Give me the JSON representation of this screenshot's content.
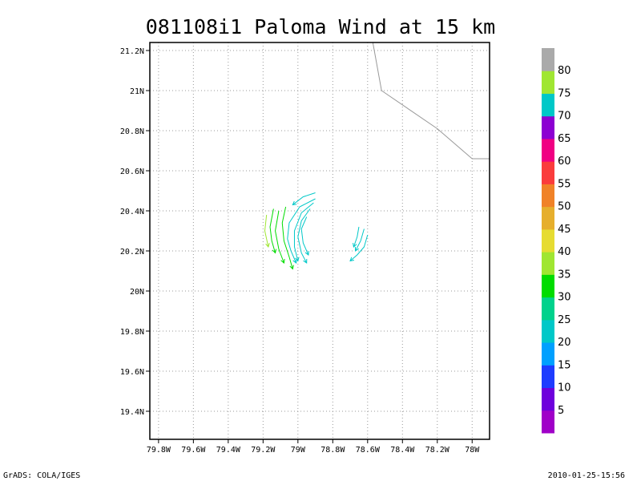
{
  "chart_data": {
    "type": "vector",
    "title": "081108i1 Paloma Wind at 15 km",
    "xlabel": "",
    "ylabel": "",
    "xlim": [
      -79.85,
      -77.9
    ],
    "ylim": [
      19.26,
      21.24
    ],
    "grid": true,
    "x_ticks": [
      {
        "value": -79.8,
        "label": "79.8W"
      },
      {
        "value": -79.6,
        "label": "79.6W"
      },
      {
        "value": -79.4,
        "label": "79.4W"
      },
      {
        "value": -79.2,
        "label": "79.2W"
      },
      {
        "value": -79.0,
        "label": "79W"
      },
      {
        "value": -78.8,
        "label": "78.8W"
      },
      {
        "value": -78.6,
        "label": "78.6W"
      },
      {
        "value": -78.4,
        "label": "78.4W"
      },
      {
        "value": -78.2,
        "label": "78.2W"
      },
      {
        "value": -78.0,
        "label": "78W"
      }
    ],
    "y_ticks": [
      {
        "value": 19.4,
        "label": "19.4N"
      },
      {
        "value": 19.6,
        "label": "19.6N"
      },
      {
        "value": 19.8,
        "label": "19.8N"
      },
      {
        "value": 20.0,
        "label": "20N"
      },
      {
        "value": 20.2,
        "label": "20.2N"
      },
      {
        "value": 20.4,
        "label": "20.4N"
      },
      {
        "value": 20.6,
        "label": "20.6N"
      },
      {
        "value": 20.8,
        "label": "20.8N"
      },
      {
        "value": 21.0,
        "label": "21N"
      },
      {
        "value": 21.2,
        "label": "21.2N"
      }
    ],
    "coastline": [
      [
        -78.57,
        21.24
      ],
      [
        -78.52,
        21.0
      ],
      [
        -78.2,
        20.81
      ],
      [
        -78.0,
        20.66
      ],
      [
        -77.9,
        20.66
      ]
    ],
    "colorbar": {
      "labels": [
        "5",
        "10",
        "15",
        "20",
        "25",
        "30",
        "35",
        "40",
        "45",
        "50",
        "55",
        "60",
        "65",
        "70",
        "75",
        "80"
      ],
      "colors": [
        "#a000c8",
        "#6e00dc",
        "#1e3cff",
        "#00a0ff",
        "#00c8c8",
        "#00d28c",
        "#00dc00",
        "#a0e632",
        "#e6dc32",
        "#e6af2d",
        "#f08228",
        "#fa3c3c",
        "#f00082",
        "#8c00d2",
        "#00c8c8",
        "#a0e632",
        "#aaaaaa"
      ]
    },
    "streamlines": [
      {
        "color": "#00c8c8",
        "points": [
          [
            -78.9,
            20.49
          ],
          [
            -78.97,
            20.47
          ],
          [
            -79.03,
            20.43
          ]
        ]
      },
      {
        "color": "#00c8c8",
        "points": [
          [
            -78.9,
            20.46
          ],
          [
            -78.99,
            20.42
          ],
          [
            -79.05,
            20.34
          ],
          [
            -79.06,
            20.26
          ],
          [
            -79.04,
            20.2
          ],
          [
            -79.01,
            20.14
          ]
        ]
      },
      {
        "color": "#00c8c8",
        "points": [
          [
            -78.91,
            20.44
          ],
          [
            -78.98,
            20.39
          ],
          [
            -79.02,
            20.3
          ],
          [
            -79.02,
            20.22
          ],
          [
            -79.0,
            20.15
          ]
        ]
      },
      {
        "color": "#00c8c8",
        "points": [
          [
            -78.93,
            20.41
          ],
          [
            -78.98,
            20.35
          ],
          [
            -79.0,
            20.27
          ],
          [
            -78.98,
            20.19
          ],
          [
            -78.95,
            20.14
          ]
        ]
      },
      {
        "color": "#00c8c8",
        "points": [
          [
            -78.95,
            20.37
          ],
          [
            -78.98,
            20.31
          ],
          [
            -78.97,
            20.24
          ],
          [
            -78.94,
            20.18
          ]
        ]
      },
      {
        "color": "#00dc00",
        "points": [
          [
            -79.14,
            20.41
          ],
          [
            -79.16,
            20.32
          ],
          [
            -79.15,
            20.25
          ],
          [
            -79.13,
            20.19
          ]
        ]
      },
      {
        "color": "#00dc00",
        "points": [
          [
            -79.11,
            20.4
          ],
          [
            -79.13,
            20.3
          ],
          [
            -79.11,
            20.21
          ],
          [
            -79.08,
            20.14
          ]
        ]
      },
      {
        "color": "#00dc00",
        "points": [
          [
            -79.07,
            20.42
          ],
          [
            -79.09,
            20.34
          ],
          [
            -79.08,
            20.25
          ],
          [
            -79.05,
            20.17
          ],
          [
            -79.03,
            20.11
          ]
        ]
      },
      {
        "color": "#a0e632",
        "points": [
          [
            -79.18,
            20.38
          ],
          [
            -79.19,
            20.3
          ],
          [
            -79.17,
            20.22
          ]
        ]
      },
      {
        "color": "#00c8c8",
        "points": [
          [
            -78.65,
            20.32
          ],
          [
            -78.66,
            20.27
          ],
          [
            -78.68,
            20.22
          ]
        ]
      },
      {
        "color": "#00c8c8",
        "points": [
          [
            -78.6,
            20.28
          ],
          [
            -78.62,
            20.22
          ],
          [
            -78.66,
            20.18
          ],
          [
            -78.7,
            20.15
          ]
        ]
      },
      {
        "color": "#00c8c8",
        "points": [
          [
            -78.62,
            20.31
          ],
          [
            -78.64,
            20.25
          ],
          [
            -78.67,
            20.2
          ]
        ]
      }
    ]
  },
  "footer": {
    "left": "GrADS: COLA/IGES",
    "right": "2010-01-25-15:56"
  }
}
